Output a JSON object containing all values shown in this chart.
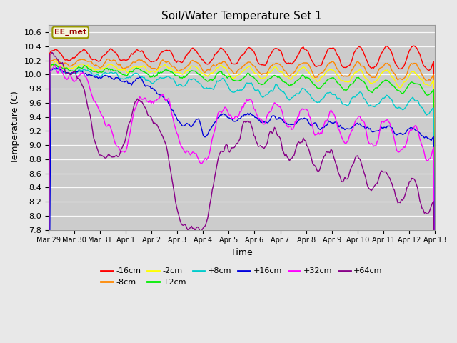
{
  "title": "Soil/Water Temperature Set 1",
  "xlabel": "Time",
  "ylabel": "Temperature (C)",
  "ylim": [
    7.8,
    10.7
  ],
  "background_color": "#e8e8e8",
  "plot_bg_color": "#cccccc",
  "annotation_text": "EE_met",
  "annotation_bg": "#f5f5dc",
  "annotation_border": "#999900",
  "series": [
    {
      "label": "-16cm",
      "color": "#ff0000"
    },
    {
      "label": "-8cm",
      "color": "#ff8800"
    },
    {
      "label": "-2cm",
      "color": "#ffff00"
    },
    {
      "label": "+2cm",
      "color": "#00ee00"
    },
    {
      "label": "+8cm",
      "color": "#00cccc"
    },
    {
      "label": "+16cm",
      "color": "#0000dd"
    },
    {
      "label": "+32cm",
      "color": "#ff00ff"
    },
    {
      "label": "+64cm",
      "color": "#880088"
    }
  ],
  "x_tick_labels": [
    "Mar 29",
    "Mar 30",
    "Mar 31",
    "Apr 1",
    "Apr 2",
    "Apr 3",
    "Apr 4",
    "Apr 5",
    "Apr 6",
    "Apr 7",
    "Apr 8",
    "Apr 9",
    "Apr 10",
    "Apr 11",
    "Apr 12",
    "Apr 13"
  ],
  "n_points": 336,
  "seed": 42
}
